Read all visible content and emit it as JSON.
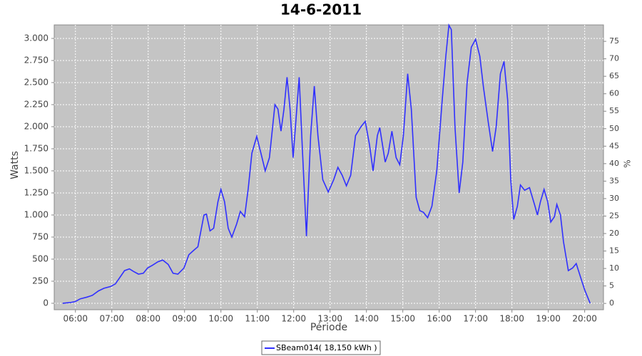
{
  "chart_data": {
    "type": "line",
    "title": "14-6-2011",
    "x_label": "Période",
    "y_label": "Watts",
    "y2_label": "%",
    "x": [
      "05:39",
      "05:53",
      "06:00",
      "06:08",
      "06:19",
      "06:28",
      "06:38",
      "06:47",
      "06:58",
      "07:06",
      "07:13",
      "07:21",
      "07:29",
      "07:36",
      "07:44",
      "07:52",
      "07:59",
      "08:07",
      "08:16",
      "08:24",
      "08:33",
      "08:41",
      "08:49",
      "08:59",
      "09:07",
      "09:15",
      "09:22",
      "09:32",
      "09:36",
      "09:42",
      "09:48",
      "09:55",
      "10:00",
      "10:06",
      "10:12",
      "10:18",
      "10:26",
      "10:32",
      "10:39",
      "10:45",
      "10:51",
      "10:59",
      "11:06",
      "11:13",
      "11:20",
      "11:29",
      "11:34",
      "11:39",
      "11:44",
      "11:49",
      "11:54",
      "11:59",
      "12:04",
      "12:09",
      "12:14",
      "12:21",
      "12:28",
      "12:34",
      "12:40",
      "12:48",
      "12:57",
      "13:06",
      "13:13",
      "13:20",
      "13:27",
      "13:34",
      "13:42",
      "13:51",
      "13:58",
      "14:05",
      "14:11",
      "14:18",
      "14:22",
      "14:31",
      "14:36",
      "14:42",
      "14:49",
      "14:55",
      "15:01",
      "15:08",
      "15:14",
      "15:22",
      "15:28",
      "15:34",
      "15:41",
      "15:48",
      "15:56",
      "16:05",
      "16:11",
      "16:16",
      "16:20",
      "16:26",
      "16:33",
      "16:39",
      "16:46",
      "16:53",
      "17:00",
      "17:07",
      "17:13",
      "17:21",
      "17:28",
      "17:34",
      "17:41",
      "17:47",
      "17:53",
      "17:58",
      "18:03",
      "18:09",
      "18:14",
      "18:21",
      "18:29",
      "18:38",
      "18:42",
      "18:47",
      "18:53",
      "18:59",
      "19:04",
      "19:10",
      "19:14",
      "19:20",
      "19:25",
      "19:33",
      "19:40",
      "19:46",
      "19:53",
      "20:00",
      "20:09"
    ],
    "series": [
      {
        "name": "SBeam014( 18,150 kWh )",
        "color": "#3030ff",
        "values": [
          0,
          10,
          20,
          50,
          70,
          90,
          140,
          170,
          190,
          220,
          290,
          370,
          390,
          360,
          330,
          340,
          400,
          430,
          470,
          490,
          440,
          340,
          330,
          400,
          550,
          600,
          640,
          1000,
          1010,
          820,
          850,
          1150,
          1290,
          1150,
          850,
          750,
          900,
          1040,
          980,
          1300,
          1700,
          1890,
          1700,
          1500,
          1650,
          2250,
          2200,
          1950,
          2200,
          2560,
          2200,
          1650,
          2100,
          2560,
          1800,
          760,
          1900,
          2460,
          1900,
          1400,
          1260,
          1400,
          1540,
          1450,
          1330,
          1450,
          1900,
          2000,
          2060,
          1800,
          1500,
          1900,
          1990,
          1600,
          1700,
          1950,
          1650,
          1570,
          1900,
          2600,
          2200,
          1200,
          1050,
          1030,
          970,
          1100,
          1500,
          2300,
          2800,
          3150,
          3100,
          2000,
          1250,
          1600,
          2500,
          2900,
          2990,
          2800,
          2450,
          2050,
          1720,
          2000,
          2600,
          2740,
          2300,
          1400,
          950,
          1100,
          1340,
          1280,
          1310,
          1100,
          1000,
          1150,
          1290,
          1150,
          920,
          980,
          1120,
          1000,
          700,
          370,
          400,
          450,
          300,
          150,
          0
        ]
      }
    ],
    "xlim": [
      "05:25",
      "20:31"
    ],
    "xticks": [
      "06:00",
      "07:00",
      "08:00",
      "09:00",
      "10:00",
      "11:00",
      "12:00",
      "13:00",
      "14:00",
      "15:00",
      "16:00",
      "17:00",
      "18:00",
      "19:00",
      "20:00"
    ],
    "ylim": [
      -73,
      3153
    ],
    "yticks": [
      0,
      250,
      500,
      750,
      {
        "value": 1000,
        "label": "1.000"
      },
      {
        "value": 1250,
        "label": "1.250"
      },
      {
        "value": 1500,
        "label": "1.500"
      },
      {
        "value": 1750,
        "label": "1.750"
      },
      {
        "value": 2000,
        "label": "2.000"
      },
      {
        "value": 2250,
        "label": "2.250"
      },
      {
        "value": 2500,
        "label": "2.500"
      },
      {
        "value": 2750,
        "label": "2.750"
      },
      {
        "value": 3000,
        "label": "3.000"
      }
    ],
    "y2lim": [
      -1.8,
      79.7
    ],
    "y2ticks": [
      0,
      5,
      10,
      15,
      20,
      25,
      30,
      35,
      40,
      45,
      50,
      55,
      60,
      65,
      70,
      75
    ],
    "grid": true,
    "legend": "bottom"
  }
}
